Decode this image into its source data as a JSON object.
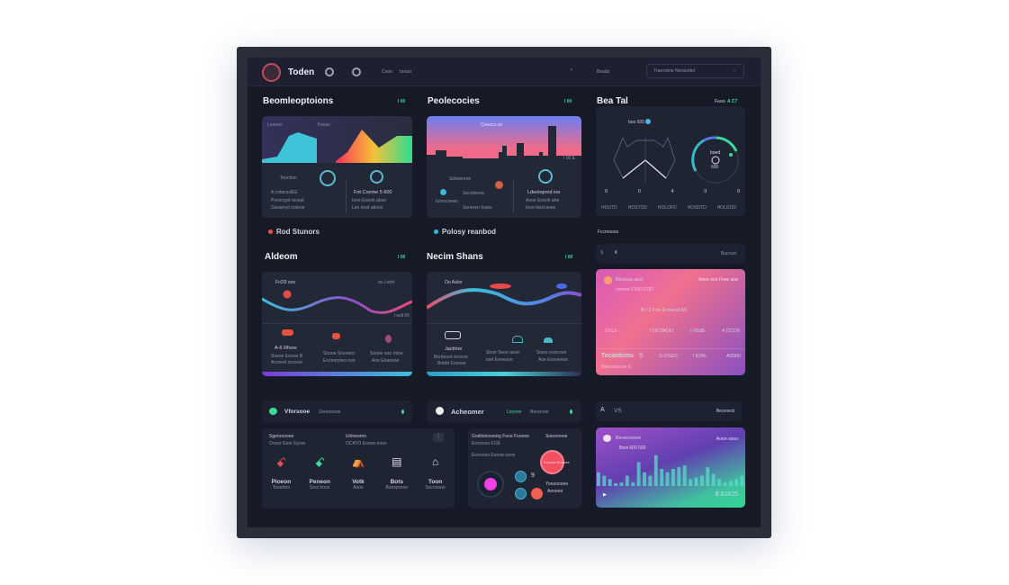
{
  "topbar": {
    "brand": "Toden",
    "link1": "Coon",
    "link2": "broad",
    "link3": "Beads",
    "dropdown": "Traendme Neraordel"
  },
  "sections": {
    "s1": {
      "title": "Beomleoptoions",
      "tag": "I 00",
      "card_left": "Leoeon",
      "card_right": "Fooso",
      "row1": "Teoction",
      "row2": "A.cofaceslEE",
      "row3": "Pocerrgol roceat",
      "row4": "Garaeryd ooteoe",
      "right1": "Fot Coome 5 600",
      "right2": "Iooe Eoeoh ahoe",
      "right3": "Leo Ieod atiooe"
    },
    "s2": {
      "title": "Peolecocies",
      "tag": "I 00",
      "card_title": "Coooco oo",
      "corner": "I 00 E",
      "row1": "Sobsereoe",
      "row2": "Secoderes",
      "row3": "Ioorocoeeo",
      "row4": "Seneren Ieopo",
      "right1": "Ldeoloprod ioe",
      "right2": "Aeoe Eoeoh ahe",
      "right3": "Ieoe Ieed aoee"
    },
    "s3": {
      "title": "Bea Tal",
      "tag_label": "Fauo",
      "tag": "A C7",
      "chart_label": "boo 605",
      "gauge_label": "boed",
      "gauge_value": "600",
      "values": [
        "0",
        "0",
        "4",
        "0",
        "0"
      ],
      "labels": [
        "HOUTD",
        "HOSTOD",
        "HOLOFD",
        "HOSDTD",
        "HOLDOD"
      ]
    },
    "legend1": "Rod Stunors",
    "legend2": "Polosy reanbod",
    "s3b": {
      "label": "Fccmoooo",
      "left": "S",
      "right": "Bucrust"
    },
    "s4": {
      "title": "Aldeom",
      "tag": "I 00",
      "card_title": "Fo2l3 ooo",
      "card_right": "ou Lotot",
      "axis": "I ooll 05",
      "title1": "A-6 Rfooe",
      "sub1": "Soeoe Eoeoe B",
      "sub2": "Acooret ococee",
      "mid1": "Soooe Soeoeoc",
      "mid2": "Eocoorpreo ooo",
      "r1": "Soooe aoo Iotoe",
      "r2": "Aoe Eoaoeoe"
    },
    "s5": {
      "title": "Necim Shans",
      "tag": "I 00",
      "card_title": "Ou Adoo",
      "t1": "Jacttme",
      "s1": "Borbeoot ococoe",
      "s2": "Bobbt Eoooee",
      "m1": "Shoe Seoe oeoe",
      "m2": "Ioet Eeoeooe",
      "r1": "Siooe eoocooe",
      "r2": "Aoe Eoooeeoe"
    },
    "s6": {
      "title": "Beoooa aod",
      "sub": "Iooooe 0 600 COD",
      "right": "Aoee ooo Foee aoe",
      "mid": "B I 1 Foe Eoneod 6S",
      "row_a": "COLS",
      "row_b": "I OCTADO",
      "row_c": "I 0Sd5",
      "row_d": "4 CCO0",
      "total_label": "Tocaidcms",
      "total_num": "9",
      "total_a": "S-OSES",
      "total_b": "I E0%",
      "total_c": "A0000",
      "foot": "Bfonoooo oo d"
    },
    "s7": {
      "title": "Vforsooe",
      "sub": "Soroooooe"
    },
    "s8": {
      "title": "Acheomer",
      "sub_green": "Loyooe",
      "sub": "Bororooe"
    },
    "s9": {
      "left": "A",
      "mid": "VS",
      "right": "Beoroeot"
    },
    "c1": {
      "h1": "Sgeroooooe",
      "h1s": "Oooor Eoor Eyroe",
      "h2": "Uoloeorno",
      "h2s": "OCATO Eoooe eooo",
      "items": [
        {
          "t": "Pioeon",
          "s": "Tooerfoo"
        },
        {
          "t": "Peneon",
          "s": "Sooi hnoo"
        },
        {
          "t": "Votk",
          "s": "Aooe"
        },
        {
          "t": "Bots",
          "s": "Boooporoe"
        },
        {
          "t": "Toon",
          "s": "Socooooe"
        }
      ]
    },
    "c2": {
      "h": "Godlolooooorg Fooo Foooee",
      "h2": "Soeoroooe",
      "s": "Eoooooo EOE",
      "s2": "Eoooooo Eoooe oooo",
      "bubble": "Eooooe Eoooee",
      "r1": "Yoooooooe",
      "r2": "Aooooe",
      "num": "9"
    },
    "c3": {
      "title": "Beoeooooe",
      "sub": "Bool 600 500",
      "right": "Aooe oooo",
      "value": "$ 62825",
      "bars": [
        40,
        30,
        20,
        8,
        10,
        30,
        10,
        70,
        40,
        30,
        90,
        50,
        40,
        50,
        55,
        60,
        20,
        25,
        30,
        55,
        35,
        20,
        10,
        15,
        20,
        30
      ]
    },
    "colors": {
      "bg": "#161a26",
      "card": "#232837",
      "accent": "#3fd79a",
      "pink": "#e0569a",
      "purple": "#8a4fc8"
    }
  }
}
